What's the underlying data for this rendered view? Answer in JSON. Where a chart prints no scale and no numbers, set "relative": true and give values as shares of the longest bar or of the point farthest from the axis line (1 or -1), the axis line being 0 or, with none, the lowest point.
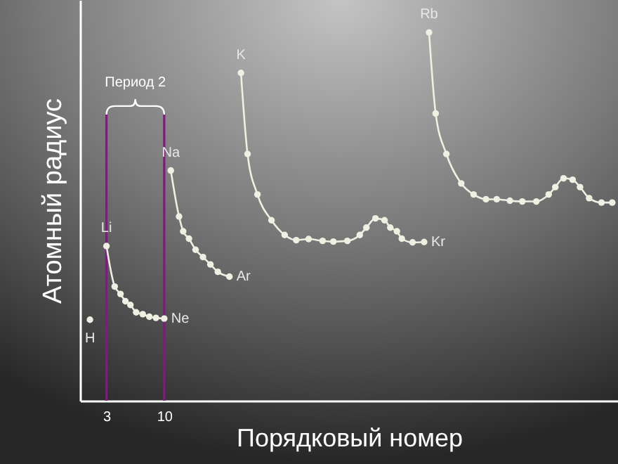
{
  "chart_data": {
    "type": "line",
    "xlabel": "Порядковый номер",
    "ylabel": "Атомный радиус",
    "relative": true,
    "xlim": [
      -0.2,
      65
    ],
    "xticks": [
      3,
      10
    ],
    "marker": "circle",
    "line_style": "solid",
    "series": [
      {
        "type": "scatter",
        "color": "#efefe2",
        "x": [
          1.0
        ],
        "values": [
          0.22
        ]
      },
      {
        "color": "#efefe2",
        "x": [
          3.0,
          4.0,
          4.7,
          5.3,
          5.9,
          6.6,
          7.4,
          8.2,
          9.0,
          10.0
        ],
        "values": [
          0.42,
          0.31,
          0.29,
          0.27,
          0.26,
          0.24,
          0.235,
          0.228,
          0.225,
          0.223
        ]
      },
      {
        "color": "#efefe2",
        "x": [
          10.8,
          11.8,
          12.3,
          13.0,
          13.8,
          14.7,
          15.6,
          16.5,
          17.9
        ],
        "values": [
          0.625,
          0.5,
          0.46,
          0.44,
          0.41,
          0.39,
          0.37,
          0.35,
          0.337
        ]
      },
      {
        "color": "#efefe2",
        "x": [
          19.3,
          20.1,
          21.3,
          23.0,
          24.6,
          26.0,
          27.5,
          29.2,
          30.5,
          32.2,
          33.7,
          34.5,
          35.6,
          36.7,
          37.4,
          38.2,
          38.8,
          40.1,
          41.5
        ],
        "values": [
          0.89,
          0.67,
          0.56,
          0.49,
          0.45,
          0.436,
          0.439,
          0.434,
          0.432,
          0.434,
          0.45,
          0.47,
          0.495,
          0.49,
          0.47,
          0.46,
          0.44,
          0.43,
          0.431
        ]
      },
      {
        "color": "#efefe2",
        "x": [
          42.1,
          42.9,
          44.2,
          46.0,
          47.5,
          49.0,
          50.3,
          51.9,
          53.4,
          55.1,
          56.6,
          57.4,
          58.4,
          59.5,
          60.4,
          61.5,
          63.0,
          64.3
        ],
        "values": [
          1.0,
          0.78,
          0.67,
          0.59,
          0.56,
          0.547,
          0.547,
          0.543,
          0.541,
          0.541,
          0.56,
          0.58,
          0.604,
          0.6,
          0.58,
          0.55,
          0.538,
          0.538
        ]
      }
    ],
    "ref_lines": [
      {
        "axis": "x",
        "value": 3,
        "color": "#7a1f78"
      },
      {
        "axis": "x",
        "value": 10,
        "color": "#7a1f78"
      }
    ],
    "annotations": [
      "Период 2",
      {
        "text": "H",
        "x": 1.0,
        "y": 0.22
      },
      {
        "text": "Li",
        "x": 3.0,
        "y": 0.42
      },
      {
        "text": "Ne",
        "x": 10.0,
        "y": 0.223
      },
      {
        "text": "Na",
        "x": 10.8,
        "y": 0.625
      },
      {
        "text": "Ar",
        "x": 17.9,
        "y": 0.337
      },
      {
        "text": "K",
        "x": 19.3,
        "y": 0.89
      },
      {
        "text": "Kr",
        "x": 41.5,
        "y": 0.431
      },
      {
        "text": "Rb",
        "x": 42.1,
        "y": 1.0
      }
    ]
  }
}
